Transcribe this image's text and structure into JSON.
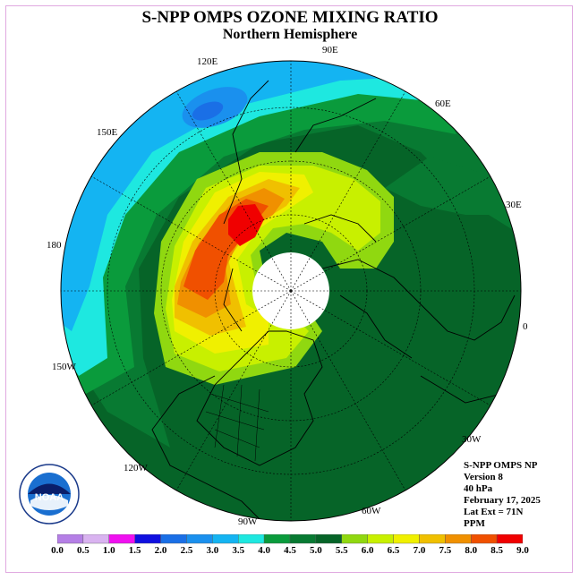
{
  "title": "S-NPP OMPS OZONE MIXING RATIO",
  "subtitle": "Northern Hemisphere",
  "longitude_labels": [
    "90E",
    "60E",
    "30E",
    "0",
    "30W",
    "60W",
    "90W",
    "120W",
    "150W",
    "180",
    "150E",
    "120E"
  ],
  "info": {
    "product": "S-NPP OMPS NP",
    "version": "Version 8",
    "level": "40 hPa",
    "date": "February 17, 2025",
    "lat_ext": "Lat Ext = 71N",
    "units": "PPM"
  },
  "logo_text": "NOAA",
  "colorbar": {
    "ticks": [
      "0.0",
      "0.5",
      "1.0",
      "1.5",
      "2.0",
      "2.5",
      "3.0",
      "3.5",
      "4.0",
      "4.5",
      "5.0",
      "5.5",
      "6.0",
      "6.5",
      "7.0",
      "7.5",
      "8.0",
      "8.5",
      "9.0"
    ],
    "colors": [
      "#b57fe6",
      "#d9b3f0",
      "#f010f0",
      "#1010e0",
      "#1a6fe6",
      "#1a90ee",
      "#14b4f2",
      "#1ee8e0",
      "#0a9b3c",
      "#087a32",
      "#066428",
      "#90d810",
      "#c8f000",
      "#f0f000",
      "#f0c000",
      "#f09000",
      "#f05000",
      "#f00000",
      "#8c5a3c"
    ]
  },
  "colors": {
    "frame_border": "#e0a9e0",
    "land_outline": "#000000",
    "polar_void": "#ffffff"
  }
}
